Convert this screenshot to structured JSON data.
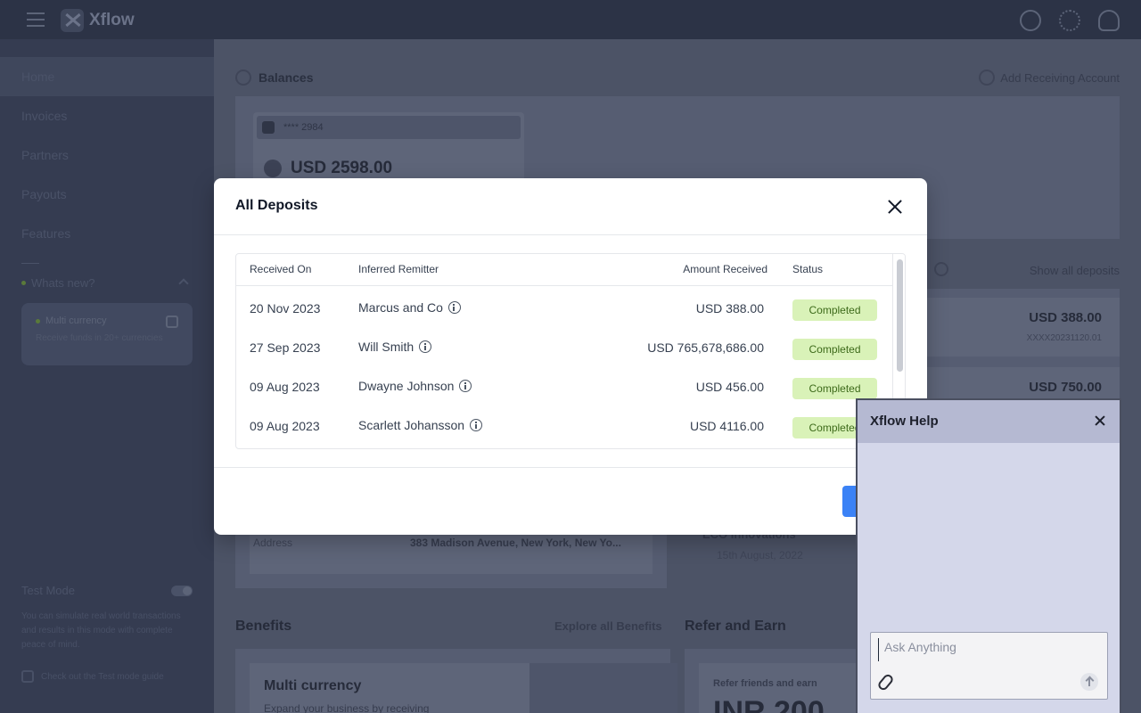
{
  "app": {
    "name": "Xflow",
    "icons": [
      "help-icon",
      "settings-icon",
      "user-icon"
    ]
  },
  "sidebar": {
    "items": [
      {
        "label": "Home",
        "active": true
      },
      {
        "label": "Invoices"
      },
      {
        "label": "Partners"
      },
      {
        "label": "Payouts"
      },
      {
        "label": "Features"
      }
    ],
    "whats_new": "Whats new?",
    "card_title": "Multi currency",
    "card_desc": "Receive funds in 20+ currencies",
    "test_mode": "Test Mode",
    "test_desc": "You can simulate real world transactions and results in this mode with complete peace of mind.",
    "test_guide": "Check out the Test mode guide"
  },
  "background": {
    "balances_title": "Balances",
    "add_account": "Add Receiving Account",
    "account_mask": "**** 2984",
    "account_amount": "USD 2598.00",
    "show_all": "Show all deposits",
    "deposit_amt_1": "USD 388.00",
    "deposit_sub_1": "XXXX20231120.01",
    "deposit_amt_2": "USD 750.00",
    "address_label": "Address",
    "address_value": "383 Madison Avenue, New York, New Yo...",
    "partner_name": "ECO Innovations",
    "partner_date": "15th August, 2022",
    "benefits_title": "Benefits",
    "explore_link": "Explore all Benefits",
    "refer_title": "Refer and Earn",
    "benefit_card_title": "Multi currency",
    "benefit_card_sub": "Expand your business by receiving",
    "refer_small": "Refer friends and earn",
    "refer_big": "INR 200"
  },
  "modal": {
    "title": "All Deposits",
    "columns": [
      "Received On",
      "Inferred Remitter",
      "Amount Received",
      "Status"
    ],
    "rows": [
      {
        "date": "20 Nov 2023",
        "remitter": "Marcus and Co",
        "amount": "USD 388.00",
        "status": "Completed"
      },
      {
        "date": "27 Sep 2023",
        "remitter": "Will Smith",
        "amount": "USD 765,678,686.00",
        "status": "Completed"
      },
      {
        "date": "09 Aug 2023",
        "remitter": "Dwayne Johnson",
        "amount": "USD 456.00",
        "status": "Completed"
      },
      {
        "date": "09 Aug 2023",
        "remitter": "Scarlett Johansson",
        "amount": "USD 4116.00",
        "status": "Completed"
      }
    ],
    "footer_button": "",
    "status_color": "#d9f2b8",
    "button_color": "#3b82f6"
  },
  "help": {
    "title": "Xflow Help",
    "placeholder": "Ask Anything"
  }
}
